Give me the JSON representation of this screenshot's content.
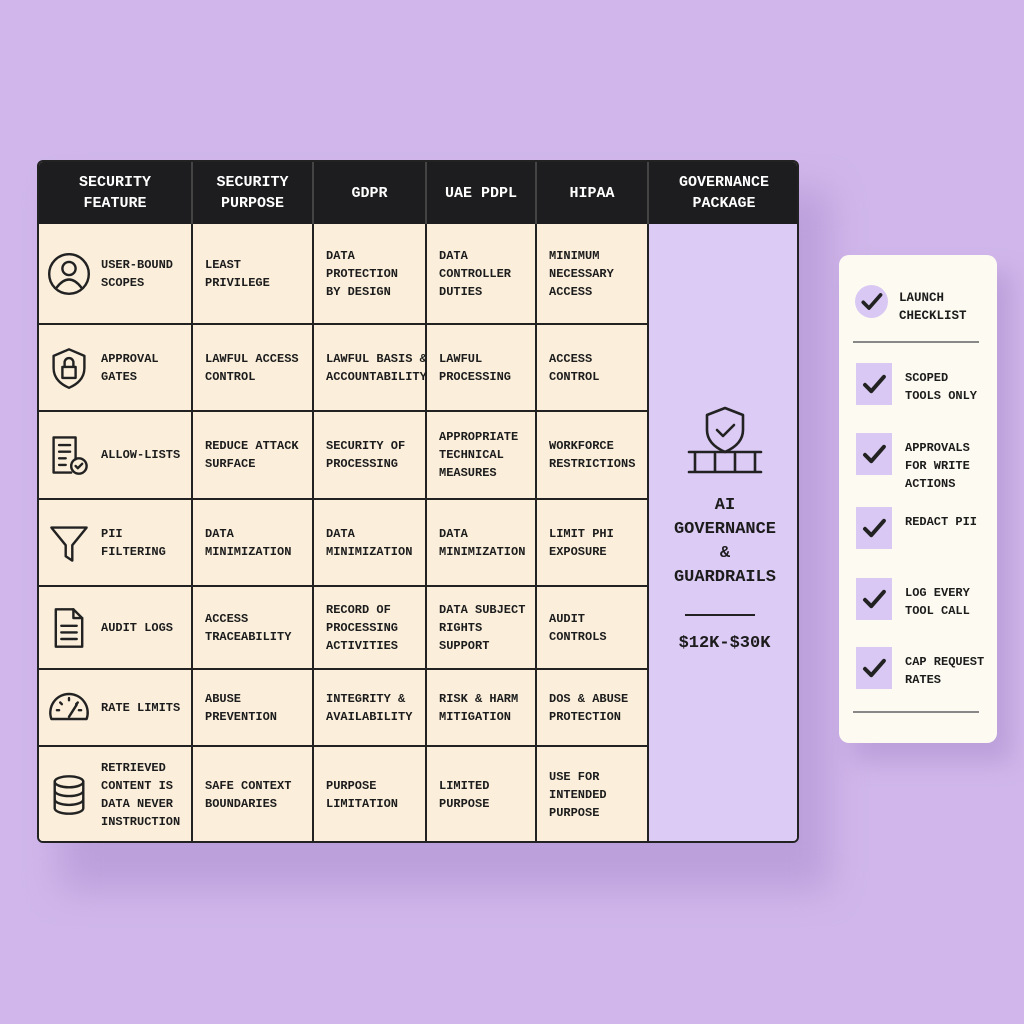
{
  "table": {
    "header": [
      "SECURITY FEATURE",
      "SECURITY PURPOSE",
      "GDPR",
      "UAE PDPL",
      "HIPAA",
      "GOVERNANCE PACKAGE"
    ],
    "rows": [
      [
        "USER-BOUND SCOPES",
        "LEAST PRIVILEGE",
        "DATA PROTECTION BY DESIGN",
        "DATA CONTROLLER DUTIES",
        "MINIMUM NECESSARY ACCESS"
      ],
      [
        "APPROVAL GATES",
        "LAWFUL ACCESS CONTROL",
        "LAWFUL BASIS & ACCOUNTABILITY",
        "LAWFUL PROCESSING",
        "ACCESS CONTROL"
      ],
      [
        "ALLOW-LISTS",
        "REDUCE ATTACK SURFACE",
        "SECURITY OF PROCESSING",
        "APPROPRIATE TECHNICAL MEASURES",
        "WORKFORCE RESTRICTIONS"
      ],
      [
        "PII FILTERING",
        "DATA MINIMIZATION",
        "DATA MINIMIZATION",
        "DATA MINIMIZATION",
        "LIMIT PHI EXPOSURE"
      ],
      [
        "AUDIT LOGS",
        "ACCESS TRACEABILITY",
        "RECORD OF PROCESSING ACTIVITIES",
        "DATA SUBJECT RIGHTS SUPPORT",
        "AUDIT CONTROLS"
      ],
      [
        "RATE LIMITS",
        "ABUSE PREVENTION",
        "INTEGRITY & AVAILABILITY",
        "RISK & HARM MITIGATION",
        "DOS & ABUSE PROTECTION"
      ],
      [
        "RETRIEVED CONTENT IS DATA NEVER INSTRUCTION",
        "SAFE CONTEXT BOUNDARIES",
        "PURPOSE LIMITATION",
        "LIMITED PURPOSE",
        "USE FOR INTENDED PURPOSE"
      ]
    ]
  },
  "package": {
    "title": "AI GOVERNANCE & GUARDRAILS",
    "price": "$12K-$30K"
  },
  "checklist": {
    "title": "LAUNCH CHECKLIST",
    "items": [
      "SCOPED TOOLS ONLY",
      "APPROVALS FOR WRITE ACTIONS",
      "REDACT PII",
      "LOG EVERY TOOL CALL",
      "CAP REQUEST RATES"
    ]
  }
}
